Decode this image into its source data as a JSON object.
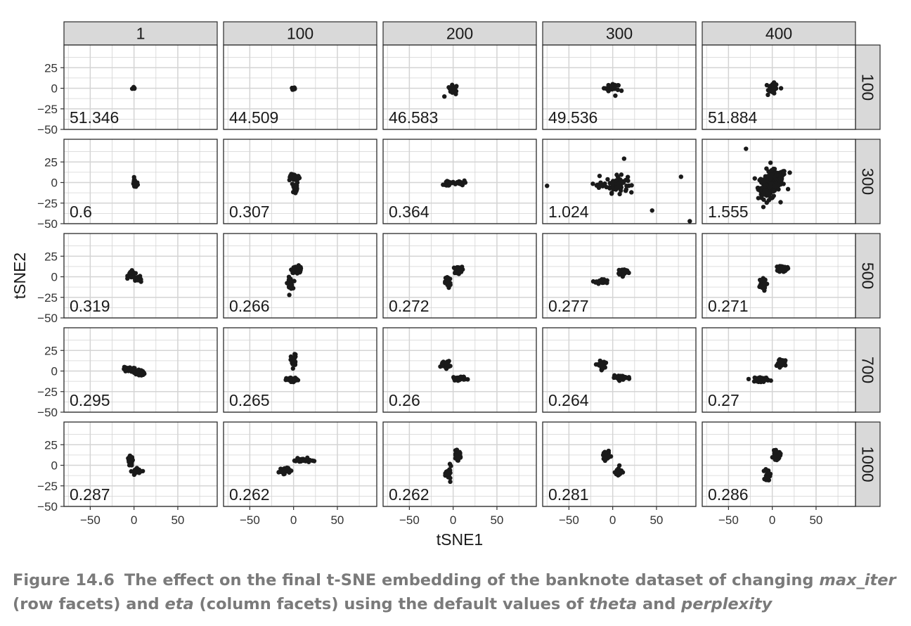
{
  "chart_data": {
    "type": "scatter",
    "layout": "facet-grid",
    "xlabel": "tSNE1",
    "ylabel": "tSNE2",
    "xlim": [
      -80,
      95
    ],
    "ylim": [
      -50,
      50
    ],
    "x_ticks": [
      -50,
      0,
      50
    ],
    "y_ticks": [
      25,
      0,
      -25,
      -50
    ],
    "x_tick_labels": [
      "−50",
      "0",
      "50"
    ],
    "y_tick_labels": [
      "25",
      "0",
      "−25",
      "−50"
    ],
    "grid": true,
    "column_facets": [
      "1",
      "100",
      "200",
      "300",
      "400"
    ],
    "row_facets": [
      "100",
      "300",
      "500",
      "700",
      "1000"
    ],
    "panels": [
      {
        "row": "100",
        "col": "1",
        "label": "51.346",
        "clusters": [
          {
            "cx": 0,
            "cy": 0,
            "sx": 1,
            "sy": 1,
            "n": 6
          }
        ]
      },
      {
        "row": "100",
        "col": "100",
        "label": "44.509",
        "clusters": [
          {
            "cx": 0,
            "cy": 0,
            "sx": 1.5,
            "sy": 1.2,
            "n": 8
          }
        ]
      },
      {
        "row": "100",
        "col": "200",
        "label": "46.583",
        "clusters": [
          {
            "cx": 0,
            "cy": 0,
            "sx": 3,
            "sy": 2,
            "n": 14
          }
        ],
        "points": [
          [
            -10,
            -10
          ],
          [
            3,
            -7
          ],
          [
            -3,
            -4
          ]
        ]
      },
      {
        "row": "100",
        "col": "300",
        "label": "49.536",
        "clusters": [
          {
            "cx": 0,
            "cy": 0,
            "sx": 4,
            "sy": 2.5,
            "n": 18
          }
        ],
        "points": [
          [
            -10,
            0
          ],
          [
            10,
            -3
          ],
          [
            3,
            -9
          ],
          [
            0,
            5
          ]
        ]
      },
      {
        "row": "100",
        "col": "400",
        "label": "51.884",
        "clusters": [
          {
            "cx": 0,
            "cy": 0,
            "sx": 3,
            "sy": 3,
            "n": 22
          }
        ],
        "points": [
          [
            10,
            0
          ],
          [
            -5,
            -8
          ],
          [
            2,
            7
          ]
        ]
      },
      {
        "row": "300",
        "col": "1",
        "label": "0.6",
        "clusters": [
          {
            "cx": 1,
            "cy": -1,
            "sx": 1.5,
            "sy": 3,
            "n": 16
          }
        ]
      },
      {
        "row": "300",
        "col": "100",
        "label": "0.307",
        "clusters": [
          {
            "cx": 1,
            "cy": 6,
            "sx": 3,
            "sy": 2,
            "n": 30
          },
          {
            "cx": 2,
            "cy": -6,
            "sx": 1.5,
            "sy": 4,
            "n": 22
          }
        ]
      },
      {
        "row": "300",
        "col": "200",
        "label": "0.364",
        "clusters": [
          {
            "cx": -5,
            "cy": -1,
            "sx": 3,
            "sy": 2,
            "n": 24
          },
          {
            "cx": 7,
            "cy": 0,
            "sx": 4,
            "sy": 1.5,
            "n": 18
          }
        ]
      },
      {
        "row": "300",
        "col": "300",
        "label": "1.024",
        "clusters": [
          {
            "cx": 5,
            "cy": -2,
            "sx": 6,
            "sy": 5,
            "n": 60
          },
          {
            "cx": -14,
            "cy": -2,
            "sx": 3,
            "sy": 2,
            "n": 12
          }
        ],
        "points": [
          [
            -75,
            -4
          ],
          [
            78,
            7
          ],
          [
            45,
            -34
          ],
          [
            88,
            -47
          ],
          [
            13,
            29
          ],
          [
            -15,
            8
          ],
          [
            8,
            -14
          ]
        ]
      },
      {
        "row": "300",
        "col": "400",
        "label": "1.555",
        "clusters": [
          {
            "cx": -4,
            "cy": -6,
            "sx": 6,
            "sy": 7,
            "n": 120
          },
          {
            "cx": 4,
            "cy": 6,
            "sx": 6,
            "sy": 5,
            "n": 60
          }
        ],
        "points": [
          [
            -30,
            41
          ],
          [
            20,
            12
          ],
          [
            -20,
            5
          ],
          [
            18,
            -8
          ],
          [
            -2,
            24
          ]
        ]
      },
      {
        "row": "500",
        "col": "1",
        "label": "0.319",
        "clusters": [
          {
            "cx": -3,
            "cy": 3,
            "sx": 2,
            "sy": 2,
            "n": 26
          },
          {
            "cx": 4,
            "cy": -2,
            "sx": 2.5,
            "sy": 1.5,
            "n": 20
          }
        ],
        "points": [
          [
            8,
            -6
          ]
        ]
      },
      {
        "row": "500",
        "col": "100",
        "label": "0.266",
        "clusters": [
          {
            "cx": 4,
            "cy": 9,
            "sx": 3,
            "sy": 2,
            "n": 45
          },
          {
            "cx": -4,
            "cy": -8,
            "sx": 1.5,
            "sy": 3.5,
            "n": 30
          }
        ]
      },
      {
        "row": "500",
        "col": "200",
        "label": "0.272",
        "clusters": [
          {
            "cx": 5,
            "cy": 8,
            "sx": 2.5,
            "sy": 2,
            "n": 40
          },
          {
            "cx": -6,
            "cy": -6,
            "sx": 1.5,
            "sy": 4,
            "n": 30
          }
        ]
      },
      {
        "row": "500",
        "col": "300",
        "label": "0.277",
        "clusters": [
          {
            "cx": 12,
            "cy": 6,
            "sx": 3,
            "sy": 2,
            "n": 45
          },
          {
            "cx": -12,
            "cy": -6,
            "sx": 3.5,
            "sy": 1.5,
            "n": 28
          }
        ]
      },
      {
        "row": "500",
        "col": "400",
        "label": "0.271",
        "clusters": [
          {
            "cx": 12,
            "cy": 10,
            "sx": 2.5,
            "sy": 2,
            "n": 45
          },
          {
            "cx": -12,
            "cy": -10,
            "sx": 2.5,
            "sy": 3.5,
            "n": 30
          }
        ]
      },
      {
        "row": "700",
        "col": "1",
        "label": "0.295",
        "clusters": [
          {
            "cx": -6,
            "cy": 2,
            "sx": 3,
            "sy": 1.5,
            "n": 28
          },
          {
            "cx": 6,
            "cy": -2,
            "sx": 3,
            "sy": 2,
            "n": 26
          }
        ]
      },
      {
        "row": "700",
        "col": "100",
        "label": "0.265",
        "clusters": [
          {
            "cx": 0,
            "cy": 12,
            "sx": 1.5,
            "sy": 4,
            "n": 32
          },
          {
            "cx": -1,
            "cy": -11,
            "sx": 3.5,
            "sy": 1.5,
            "n": 32
          }
        ]
      },
      {
        "row": "700",
        "col": "200",
        "label": "0.26",
        "clusters": [
          {
            "cx": -9,
            "cy": 8,
            "sx": 2.5,
            "sy": 2,
            "n": 40
          },
          {
            "cx": 8,
            "cy": -9,
            "sx": 4,
            "sy": 1.2,
            "n": 28
          }
        ]
      },
      {
        "row": "700",
        "col": "300",
        "label": "0.264",
        "clusters": [
          {
            "cx": -13,
            "cy": 7,
            "sx": 2,
            "sy": 2.5,
            "n": 40
          },
          {
            "cx": 10,
            "cy": -8,
            "sx": 5,
            "sy": 1.2,
            "n": 32
          }
        ]
      },
      {
        "row": "700",
        "col": "400",
        "label": "0.27",
        "clusters": [
          {
            "cx": 12,
            "cy": 10,
            "sx": 2.5,
            "sy": 2,
            "n": 45
          },
          {
            "cx": -12,
            "cy": -10,
            "sx": 4,
            "sy": 1.5,
            "n": 30
          }
        ]
      },
      {
        "row": "1000",
        "col": "1",
        "label": "0.287",
        "clusters": [
          {
            "cx": -4,
            "cy": 5,
            "sx": 1.5,
            "sy": 3,
            "n": 26
          },
          {
            "cx": 4,
            "cy": -7,
            "sx": 3,
            "sy": 1.5,
            "n": 26
          }
        ]
      },
      {
        "row": "1000",
        "col": "100",
        "label": "0.262",
        "clusters": [
          {
            "cx": -11,
            "cy": -6,
            "sx": 3,
            "sy": 2,
            "n": 40
          },
          {
            "cx": 10,
            "cy": 6,
            "sx": 5,
            "sy": 1.2,
            "n": 30
          }
        ]
      },
      {
        "row": "1000",
        "col": "200",
        "label": "0.262",
        "clusters": [
          {
            "cx": 5,
            "cy": 12,
            "sx": 2,
            "sy": 2.5,
            "n": 40
          },
          {
            "cx": -5,
            "cy": -10,
            "sx": 1.5,
            "sy": 4,
            "n": 30
          }
        ]
      },
      {
        "row": "1000",
        "col": "300",
        "label": "0.281",
        "clusters": [
          {
            "cx": -8,
            "cy": 12,
            "sx": 2,
            "sy": 3,
            "n": 36
          },
          {
            "cx": 7,
            "cy": -8,
            "sx": 2,
            "sy": 3,
            "n": 30
          }
        ]
      },
      {
        "row": "1000",
        "col": "400",
        "label": "0.286",
        "clusters": [
          {
            "cx": 5,
            "cy": 12,
            "sx": 2,
            "sy": 2.5,
            "n": 40
          },
          {
            "cx": -5,
            "cy": -12,
            "sx": 1.5,
            "sy": 4,
            "n": 30
          }
        ]
      }
    ]
  },
  "caption": {
    "number": "Figure 14.6",
    "text_1": "The effect on the final t-SNE embedding of the banknote dataset of changing ",
    "em_1": "max_iter",
    "text_2": " (row facets) and ",
    "em_2": "eta",
    "text_3": " (column facets) using the default values of ",
    "em_3": "theta",
    "text_4": " and ",
    "em_4": "perplexity"
  },
  "colors": {
    "point": "#1a1a1a",
    "strip_fill": "#d9d9d9",
    "grid": "#d4d4d4",
    "border": "#2b2b2b",
    "caption": "#7a7a7a"
  }
}
